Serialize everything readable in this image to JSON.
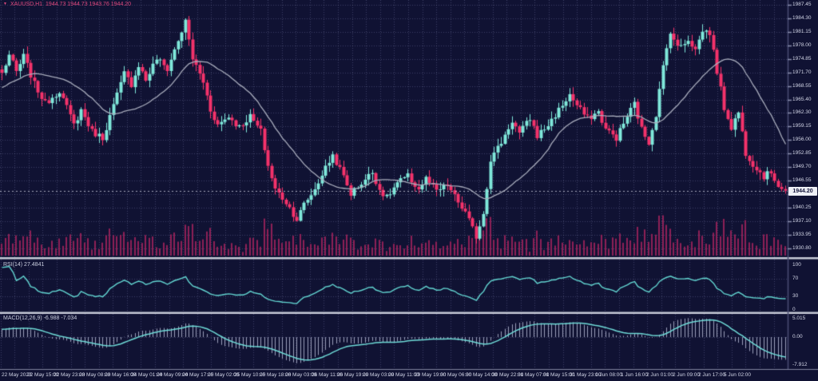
{
  "chart_data": {
    "type": "candlestick",
    "symbol_period": "XAUUSD,H1",
    "ohlc_line": "1944.73 1944.73 1943.76 1944.20",
    "open": 1944.73,
    "high": 1944.73,
    "low": 1943.76,
    "close": 1944.2,
    "current_price": "1944.20",
    "candle_count": 219,
    "ylim": [
      1928.7,
      1988.6
    ],
    "y_ticks": [
      "1987.45",
      "1984.30",
      "1981.15",
      "1978.00",
      "1974.85",
      "1971.70",
      "1968.55",
      "1965.40",
      "1962.30",
      "1959.15",
      "1956.00",
      "1952.85",
      "1949.70",
      "1946.55",
      "1943.40",
      "1940.25",
      "1937.10",
      "1933.95",
      "1930.80"
    ],
    "x_ticks": [
      "22 May 2023",
      "22 May 15:00",
      "22 May 23:00",
      "23 May 08:00",
      "23 May 16:00",
      "24 May 01:00",
      "24 May 09:00",
      "24 May 17:00",
      "25 May 02:00",
      "25 May 10:00",
      "25 May 18:00",
      "26 May 03:00",
      "26 May 11:00",
      "26 May 19:00",
      "29 May 03:00",
      "29 May 11:00",
      "29 May 19:00",
      "30 May 06:00",
      "30 May 14:00",
      "30 May 22:00",
      "31 May 07:00",
      "31 May 15:00",
      "31 May 23:00",
      "1 Jun 08:00",
      "1 Jun 16:00",
      "2 Jun 01:00",
      "2 Jun 09:00",
      "2 Jun 17:00",
      "5 Jun 02:00"
    ],
    "price_waypoints": [
      [
        0,
        1971.5
      ],
      [
        2,
        1975.8
      ],
      [
        4,
        1971.8
      ],
      [
        6,
        1975.5
      ],
      [
        9,
        1969
      ],
      [
        12,
        1964.5
      ],
      [
        16,
        1967.5
      ],
      [
        20,
        1959.5
      ],
      [
        22,
        1963
      ],
      [
        25,
        1958
      ],
      [
        28,
        1956.5
      ],
      [
        31,
        1964
      ],
      [
        34,
        1971.5
      ],
      [
        36,
        1969
      ],
      [
        38,
        1973.5
      ],
      [
        40,
        1970
      ],
      [
        43,
        1975
      ],
      [
        46,
        1972.5
      ],
      [
        48,
        1977
      ],
      [
        51,
        1983.5
      ],
      [
        53,
        1975
      ],
      [
        56,
        1969.5
      ],
      [
        58,
        1963
      ],
      [
        60,
        1959.5
      ],
      [
        63,
        1961.5
      ],
      [
        66,
        1959
      ],
      [
        69,
        1961.5
      ],
      [
        72,
        1958
      ],
      [
        74,
        1950
      ],
      [
        76,
        1944.5
      ],
      [
        79,
        1941.5
      ],
      [
        82,
        1937.5
      ],
      [
        84,
        1941
      ],
      [
        87,
        1944.5
      ],
      [
        89,
        1948
      ],
      [
        92,
        1952.5
      ],
      [
        95,
        1947.5
      ],
      [
        97,
        1943.5
      ],
      [
        100,
        1946
      ],
      [
        103,
        1948.5
      ],
      [
        105,
        1944.5
      ],
      [
        107,
        1942.5
      ],
      [
        110,
        1946
      ],
      [
        113,
        1947.5
      ],
      [
        116,
        1944.5
      ],
      [
        118,
        1947
      ],
      [
        121,
        1944
      ],
      [
        124,
        1945.5
      ],
      [
        127,
        1941.5
      ],
      [
        129,
        1939
      ],
      [
        132,
        1933.5
      ],
      [
        134,
        1939
      ],
      [
        136,
        1951.5
      ],
      [
        139,
        1955.5
      ],
      [
        142,
        1960.5
      ],
      [
        144,
        1957.5
      ],
      [
        147,
        1961
      ],
      [
        149,
        1957
      ],
      [
        152,
        1959.5
      ],
      [
        155,
        1963
      ],
      [
        158,
        1966.5
      ],
      [
        160,
        1964
      ],
      [
        163,
        1961
      ],
      [
        166,
        1962.5
      ],
      [
        168,
        1958.5
      ],
      [
        171,
        1956.5
      ],
      [
        174,
        1961.5
      ],
      [
        176,
        1964.5
      ],
      [
        178,
        1958.5
      ],
      [
        180,
        1955.5
      ],
      [
        182,
        1962
      ],
      [
        184,
        1973
      ],
      [
        186,
        1981.5
      ],
      [
        188,
        1977.5
      ],
      [
        191,
        1979.5
      ],
      [
        193,
        1977
      ],
      [
        195,
        1981.5
      ],
      [
        197,
        1981
      ],
      [
        199,
        1972
      ],
      [
        201,
        1963.5
      ],
      [
        203,
        1959
      ],
      [
        205,
        1962.5
      ],
      [
        207,
        1953
      ],
      [
        209,
        1950.5
      ],
      [
        212,
        1947.5
      ],
      [
        214,
        1948.5
      ],
      [
        216,
        1945.5
      ],
      [
        218,
        1944.2
      ]
    ],
    "prehistory": {
      "start": 1960,
      "end": 1972,
      "bars": 30
    },
    "moving_average": {
      "type": "sma",
      "period": 21
    },
    "indicators": {
      "rsi": {
        "label": "RSI(14) 27.4841",
        "period": 14,
        "value": 27.4841,
        "levels": [
          100,
          70,
          30,
          0
        ]
      },
      "macd": {
        "label": "MACD(12,26,9) -6.988 -7.034",
        "fast": 12,
        "slow": 26,
        "signal": 9,
        "macd_value": -6.988,
        "signal_value": -7.034,
        "scale_labels": [
          "5.015",
          "0.00",
          "-7.912"
        ]
      }
    },
    "legend_position": "top-left",
    "grid": true
  },
  "colors": {
    "background": "#101233",
    "grid": "rgba(150,156,200,0.34)",
    "candle_up": "#7fe8da",
    "candle_down": "#f5326b",
    "volume": "#8e2056",
    "moving_average": "#a9adbd",
    "rsi_line": "#63d6d2",
    "macd_signal": "#6fdcd8",
    "macd_histogram": "rgba(190,194,220,0.8)",
    "separator": "#c6c9d6",
    "axis_line": "#4a4e74",
    "axis_text": "#d2d5e6",
    "title_text": "#e1497e",
    "price_line": "rgba(215,218,232,0.75)",
    "tag_background": "#eef0f6",
    "tag_text": "#13143a"
  }
}
